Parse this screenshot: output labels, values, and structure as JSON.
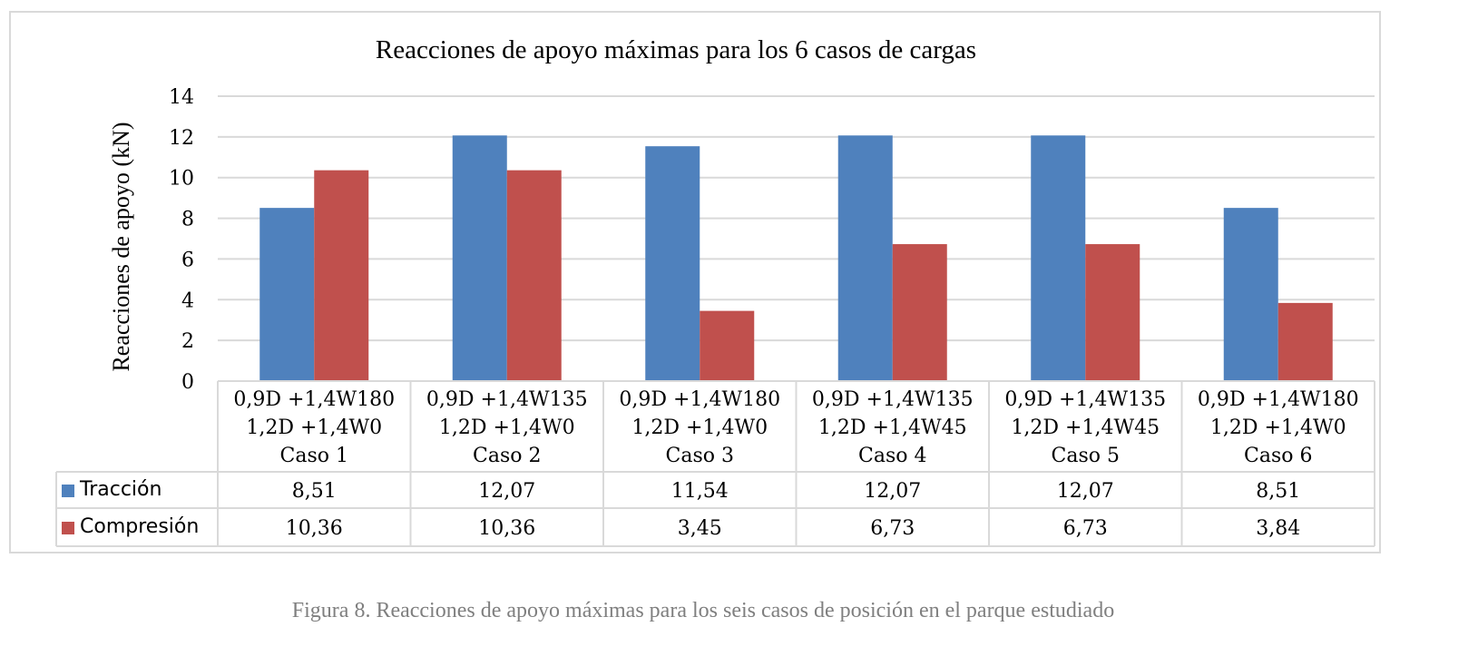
{
  "chart_data": {
    "type": "bar",
    "title": "Reacciones de apoyo máximas para los 6 casos de cargas",
    "ylabel": "Reacciones de apoyo (kN)",
    "ylim": [
      0,
      14
    ],
    "yticks": [
      0,
      2,
      4,
      6,
      8,
      10,
      12,
      14
    ],
    "grid": true,
    "legend_placement": "data-table",
    "categories": [
      [
        "0,9D +1,4W180",
        "1,2D +1,4W0",
        "Caso 1"
      ],
      [
        "0,9D +1,4W135",
        "1,2D +1,4W0",
        "Caso 2"
      ],
      [
        "0,9D +1,4W180",
        "1,2D +1,4W0",
        "Caso 3"
      ],
      [
        "0,9D +1,4W135",
        "1,2D +1,4W45",
        "Caso 4"
      ],
      [
        "0,9D +1,4W135",
        "1,2D +1,4W45",
        "Caso 5"
      ],
      [
        "0,9D +1,4W180",
        "1,2D +1,4W0",
        "Caso 6"
      ]
    ],
    "series": [
      {
        "name": "Tracción",
        "color": "#4f81bd",
        "values": [
          8.51,
          12.07,
          11.54,
          12.07,
          12.07,
          8.51
        ],
        "labels": [
          "8,51",
          "12,07",
          "11,54",
          "12,07",
          "12,07",
          "8,51"
        ]
      },
      {
        "name": "Compresión",
        "color": "#c0504d",
        "values": [
          10.36,
          10.36,
          3.45,
          6.73,
          6.73,
          3.84
        ],
        "labels": [
          "10,36",
          "10,36",
          "3,45",
          "6,73",
          "6,73",
          "3,84"
        ]
      }
    ]
  },
  "caption": "Figura 8. Reacciones de apoyo máximas para los seis casos de posición en el parque estudiado"
}
